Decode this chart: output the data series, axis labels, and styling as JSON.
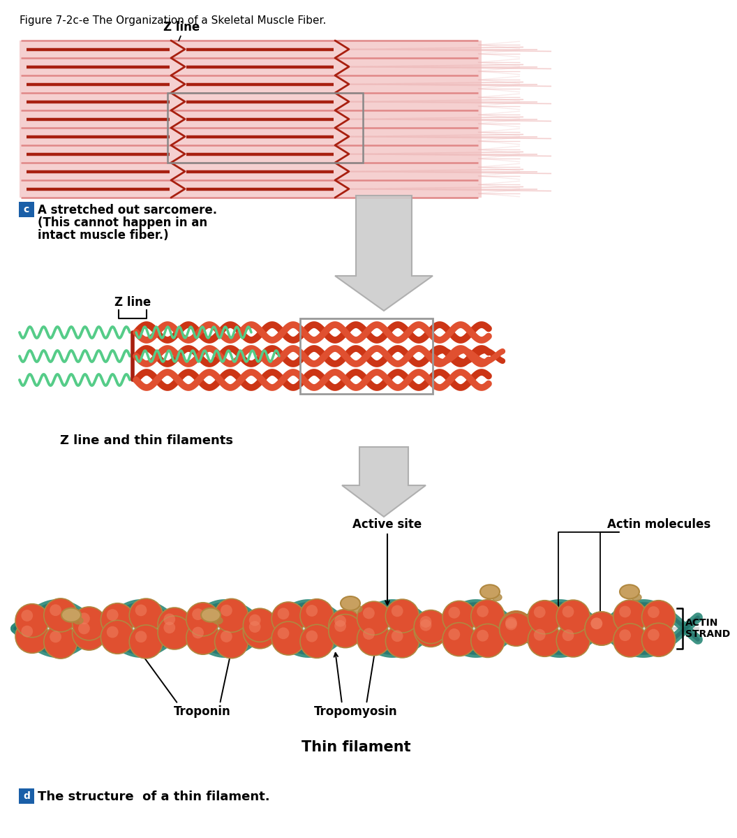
{
  "title": "Figure 7-2c-e The Organization of a Skeletal Muscle Fiber.",
  "bg_color": "#ffffff",
  "section_c_label": "c",
  "section_d_label": "d",
  "section_c_box_color": "#1a5fa8",
  "section_d_box_color": "#1a5fa8",
  "section_c_text_line1": "A stretched out sarcomere.",
  "section_c_text_line2": "(This cannot happen in an",
  "section_c_text_line3": "intact muscle fiber.)",
  "section_d_text": "The structure  of a thin filament.",
  "z_line_label": "Z line",
  "z_line_label2": "Z line",
  "thin_filament_label": "Thin filament",
  "z_line_thin_label": "Z line and thin filaments",
  "actin_strand_label": "ACTIN\nSTRAND",
  "active_site_label": "Active site",
  "actin_molecules_label": "Actin molecules",
  "troponin_label": "Troponin",
  "tropomyosin_label": "Tropomyosin",
  "red_actin": "#e05030",
  "red_actin2": "#cc3515",
  "dark_red": "#a82010",
  "salmon": "#e08888",
  "light_salmon": "#eebbbb",
  "pink_bg": "#f5d0d0",
  "green_coil": "#55cc88",
  "orange_troponin": "#c8a060",
  "orange_troponin2": "#b08840",
  "teal_strand": "#2a8878",
  "teal_strand2": "#1a6060",
  "gray_arrow": "#bbbbbb",
  "gray_arrow_dark": "#999999",
  "black": "#000000"
}
